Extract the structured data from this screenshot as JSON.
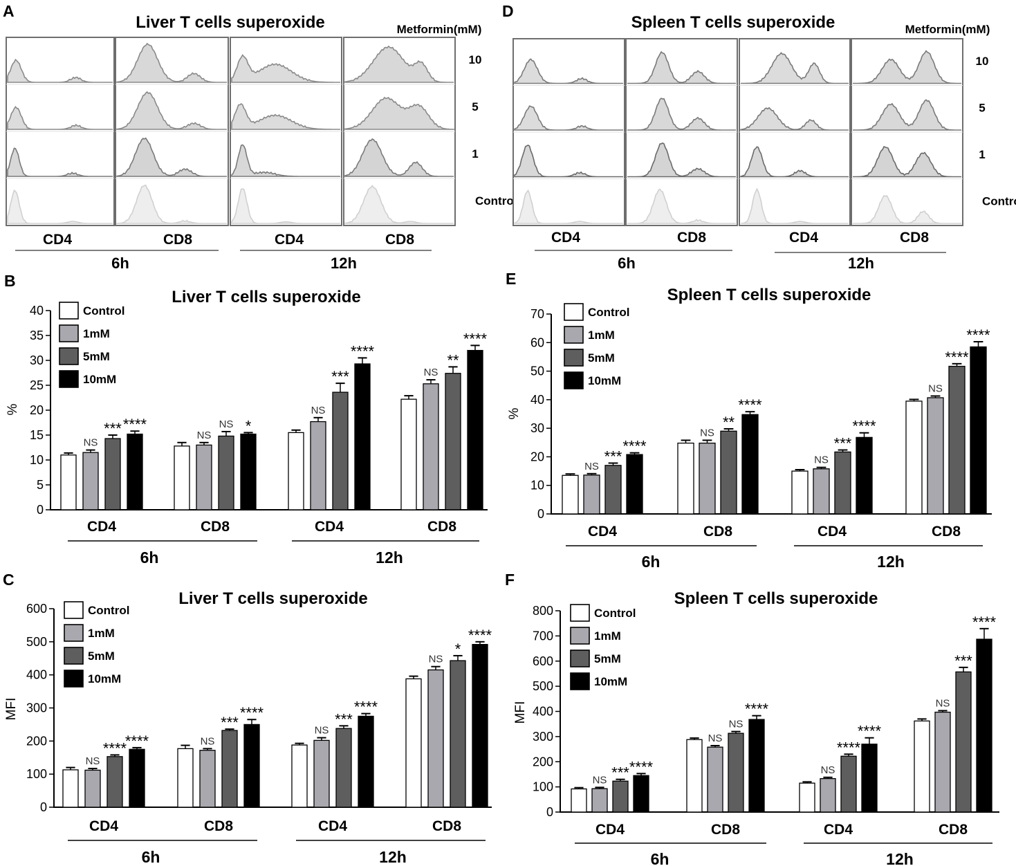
{
  "chart_data": [
    {
      "panel": "A",
      "type": "histogram",
      "title": "Liver T cells superoxide",
      "legend_title": "Metformin(mM)",
      "row_labels": [
        "10",
        "5",
        "1",
        "Control"
      ],
      "subgroups": [
        "CD4",
        "CD8",
        "CD4",
        "CD8"
      ],
      "groups": [
        "6h",
        "12h"
      ],
      "curves": [
        [
          {
            "peaks": [
              [
                0.08,
                0.55,
                0.05
              ],
              [
                0.65,
                0.12,
                0.05
              ]
            ],
            "fill": "#dcdcdc",
            "stroke": "#8a8a8a"
          },
          {
            "peaks": [
              [
                0.28,
                0.95,
                0.09
              ],
              [
                0.7,
                0.22,
                0.06
              ]
            ],
            "fill": "#d8d8d8",
            "stroke": "#8a8a8a"
          },
          {
            "peaks": [
              [
                0.1,
                0.6,
                0.05
              ],
              [
                0.4,
                0.45,
                0.15
              ]
            ],
            "fill": "#dcdcdc",
            "stroke": "#8a8a8a"
          },
          {
            "peaks": [
              [
                0.4,
                0.88,
                0.14
              ],
              [
                0.7,
                0.42,
                0.06
              ]
            ],
            "fill": "#d8d8d8",
            "stroke": "#8a8a8a"
          }
        ],
        [
          {
            "peaks": [
              [
                0.08,
                0.55,
                0.05
              ],
              [
                0.65,
                0.1,
                0.05
              ]
            ],
            "fill": "#dcdcdc",
            "stroke": "#8a8a8a"
          },
          {
            "peaks": [
              [
                0.28,
                0.92,
                0.09
              ],
              [
                0.7,
                0.15,
                0.06
              ]
            ],
            "fill": "#d8d8d8",
            "stroke": "#8a8a8a"
          },
          {
            "peaks": [
              [
                0.08,
                0.6,
                0.05
              ],
              [
                0.4,
                0.35,
                0.15
              ]
            ],
            "fill": "#dcdcdc",
            "stroke": "#8a8a8a"
          },
          {
            "peaks": [
              [
                0.38,
                0.78,
                0.13
              ],
              [
                0.68,
                0.55,
                0.09
              ]
            ],
            "fill": "#d8d8d8",
            "stroke": "#8a8a8a"
          }
        ],
        [
          {
            "peaks": [
              [
                0.07,
                0.7,
                0.04
              ],
              [
                0.62,
                0.08,
                0.05
              ]
            ],
            "fill": "#d8d8d8",
            "stroke": "#7a7a7a"
          },
          {
            "peaks": [
              [
                0.25,
                0.95,
                0.08
              ],
              [
                0.62,
                0.18,
                0.06
              ]
            ],
            "fill": "#d4d4d4",
            "stroke": "#7a7a7a"
          },
          {
            "peaks": [
              [
                0.1,
                0.78,
                0.04
              ],
              [
                0.3,
                0.1,
                0.1
              ]
            ],
            "fill": "#d8d8d8",
            "stroke": "#7a7a7a"
          },
          {
            "peaks": [
              [
                0.25,
                0.92,
                0.09
              ],
              [
                0.65,
                0.35,
                0.06
              ]
            ],
            "fill": "#d4d4d4",
            "stroke": "#7a7a7a"
          }
        ],
        [
          {
            "peaks": [
              [
                0.07,
                0.82,
                0.04
              ],
              [
                0.62,
                0.05,
                0.05
              ]
            ],
            "fill": "#eeeeee",
            "stroke": "#d0d0d0"
          },
          {
            "peaks": [
              [
                0.25,
                0.95,
                0.07
              ],
              [
                0.62,
                0.06,
                0.05
              ]
            ],
            "fill": "#eeeeee",
            "stroke": "#d0d0d0"
          },
          {
            "peaks": [
              [
                0.1,
                0.88,
                0.04
              ],
              [
                0.5,
                0.04,
                0.05
              ]
            ],
            "fill": "#eeeeee",
            "stroke": "#d0d0d0"
          },
          {
            "peaks": [
              [
                0.25,
                0.92,
                0.08
              ],
              [
                0.6,
                0.05,
                0.05
              ]
            ],
            "fill": "#eeeeee",
            "stroke": "#d0d0d0"
          }
        ]
      ]
    },
    {
      "panel": "D",
      "type": "histogram",
      "title": "Spleen T cells superoxide",
      "legend_title": "Metformin(mM)",
      "row_labels": [
        "10",
        "5",
        "1",
        "Control"
      ],
      "subgroups": [
        "CD4",
        "CD8",
        "CD4",
        "CD8"
      ],
      "groups": [
        "6h",
        "12h"
      ],
      "curves": [
        [
          {
            "peaks": [
              [
                0.15,
                0.6,
                0.06
              ],
              [
                0.62,
                0.12,
                0.05
              ]
            ],
            "fill": "#dcdcdc",
            "stroke": "#7a7a7a"
          },
          {
            "peaks": [
              [
                0.32,
                0.78,
                0.06
              ],
              [
                0.65,
                0.3,
                0.06
              ]
            ],
            "fill": "#d8d8d8",
            "stroke": "#7a7a7a"
          },
          {
            "peaks": [
              [
                0.38,
                0.75,
                0.09
              ],
              [
                0.68,
                0.5,
                0.05
              ]
            ],
            "fill": "#dcdcdc",
            "stroke": "#7a7a7a"
          },
          {
            "peaks": [
              [
                0.35,
                0.6,
                0.08
              ],
              [
                0.68,
                0.8,
                0.07
              ]
            ],
            "fill": "#d8d8d8",
            "stroke": "#7a7a7a"
          }
        ],
        [
          {
            "peaks": [
              [
                0.15,
                0.6,
                0.06
              ],
              [
                0.62,
                0.1,
                0.05
              ]
            ],
            "fill": "#dcdcdc",
            "stroke": "#7a7a7a"
          },
          {
            "peaks": [
              [
                0.32,
                0.8,
                0.06
              ],
              [
                0.65,
                0.3,
                0.06
              ]
            ],
            "fill": "#d8d8d8",
            "stroke": "#7a7a7a"
          },
          {
            "peaks": [
              [
                0.25,
                0.55,
                0.09
              ],
              [
                0.65,
                0.25,
                0.05
              ]
            ],
            "fill": "#dcdcdc",
            "stroke": "#7a7a7a"
          },
          {
            "peaks": [
              [
                0.35,
                0.65,
                0.08
              ],
              [
                0.68,
                0.75,
                0.07
              ]
            ],
            "fill": "#d8d8d8",
            "stroke": "#7a7a7a"
          }
        ],
        [
          {
            "peaks": [
              [
                0.12,
                0.8,
                0.05
              ],
              [
                0.6,
                0.1,
                0.05
              ]
            ],
            "fill": "#d8d8d8",
            "stroke": "#6a6a6a"
          },
          {
            "peaks": [
              [
                0.32,
                0.85,
                0.06
              ],
              [
                0.65,
                0.2,
                0.06
              ]
            ],
            "fill": "#d4d4d4",
            "stroke": "#6a6a6a"
          },
          {
            "peaks": [
              [
                0.15,
                0.75,
                0.05
              ],
              [
                0.55,
                0.15,
                0.05
              ]
            ],
            "fill": "#d8d8d8",
            "stroke": "#6a6a6a"
          },
          {
            "peaks": [
              [
                0.3,
                0.75,
                0.07
              ],
              [
                0.65,
                0.6,
                0.07
              ]
            ],
            "fill": "#d4d4d4",
            "stroke": "#6a6a6a"
          }
        ],
        [
          {
            "peaks": [
              [
                0.12,
                0.82,
                0.04
              ],
              [
                0.6,
                0.05,
                0.05
              ]
            ],
            "fill": "#eeeeee",
            "stroke": "#d0d0d0"
          },
          {
            "peaks": [
              [
                0.3,
                0.85,
                0.06
              ],
              [
                0.65,
                0.08,
                0.05
              ]
            ],
            "fill": "#eeeeee",
            "stroke": "#d0d0d0"
          },
          {
            "peaks": [
              [
                0.15,
                0.85,
                0.04
              ],
              [
                0.55,
                0.05,
                0.05
              ]
            ],
            "fill": "#eeeeee",
            "stroke": "#d0d0d0"
          },
          {
            "peaks": [
              [
                0.3,
                0.7,
                0.06
              ],
              [
                0.65,
                0.3,
                0.05
              ]
            ],
            "fill": "#eeeeee",
            "stroke": "#d0d0d0"
          }
        ]
      ]
    },
    {
      "panel": "B",
      "type": "bar",
      "title": "Liver T cells superoxide",
      "ylabel": "%",
      "ylim": [
        0,
        40
      ],
      "yticks": [
        0,
        5,
        10,
        15,
        20,
        25,
        30,
        35,
        40
      ],
      "legend_position": "top-left",
      "categories": [
        "CD4",
        "CD8",
        "CD4",
        "CD8"
      ],
      "groups": [
        "6h",
        "12h"
      ],
      "series": [
        {
          "name": "Control",
          "color": "#ffffff",
          "values": [
            11.0,
            12.8,
            15.5,
            22.2
          ],
          "errors": [
            0.4,
            0.7,
            0.5,
            0.7
          ]
        },
        {
          "name": "1mM",
          "color": "#a8a8ae",
          "values": [
            11.5,
            13.0,
            17.7,
            25.3
          ],
          "errors": [
            0.5,
            0.5,
            0.8,
            0.8
          ]
        },
        {
          "name": "5mM",
          "color": "#5e5e5e",
          "values": [
            14.3,
            14.8,
            23.6,
            27.4
          ],
          "errors": [
            0.7,
            0.9,
            1.8,
            1.3
          ]
        },
        {
          "name": "10mM",
          "color": "#000000",
          "values": [
            15.2,
            15.2,
            29.3,
            32.0
          ],
          "errors": [
            0.6,
            0.3,
            1.2,
            1.0
          ]
        }
      ],
      "significance": [
        [
          "",
          "NS",
          "***",
          "****"
        ],
        [
          "",
          "NS",
          "NS",
          "*"
        ],
        [
          "",
          "NS",
          "***",
          "****"
        ],
        [
          "",
          "NS",
          "**",
          "****"
        ]
      ]
    },
    {
      "panel": "E",
      "type": "bar",
      "title": "Spleen T cells superoxide",
      "ylabel": "%",
      "ylim": [
        0,
        70
      ],
      "yticks": [
        0,
        10,
        20,
        30,
        40,
        50,
        60,
        70
      ],
      "legend_position": "top-left",
      "categories": [
        "CD4",
        "CD8",
        "CD4",
        "CD8"
      ],
      "groups": [
        "6h",
        "12h"
      ],
      "series": [
        {
          "name": "Control",
          "color": "#ffffff",
          "values": [
            13.5,
            24.8,
            15.0,
            39.5
          ],
          "errors": [
            0.5,
            1.0,
            0.5,
            0.6
          ]
        },
        {
          "name": "1mM",
          "color": "#a8a8ae",
          "values": [
            13.6,
            24.8,
            15.8,
            40.7
          ],
          "errors": [
            0.5,
            1.0,
            0.5,
            0.6
          ]
        },
        {
          "name": "5mM",
          "color": "#5e5e5e",
          "values": [
            17.0,
            29.0,
            21.7,
            51.7
          ],
          "errors": [
            0.8,
            0.8,
            0.7,
            0.9
          ]
        },
        {
          "name": "10mM",
          "color": "#000000",
          "values": [
            20.8,
            34.8,
            26.8,
            58.5
          ],
          "errors": [
            0.6,
            1.0,
            1.6,
            1.8
          ]
        }
      ],
      "significance": [
        [
          "",
          "NS",
          "***",
          "****"
        ],
        [
          "",
          "NS",
          "**",
          "****"
        ],
        [
          "",
          "NS",
          "***",
          "****"
        ],
        [
          "",
          "NS",
          "****",
          "****"
        ]
      ]
    },
    {
      "panel": "C",
      "type": "bar",
      "title": "Liver T cells superoxide",
      "ylabel": "MFI",
      "ylim": [
        0,
        600
      ],
      "yticks": [
        0,
        100,
        200,
        300,
        400,
        500,
        600
      ],
      "legend_position": "top-left",
      "categories": [
        "CD4",
        "CD8",
        "CD4",
        "CD8"
      ],
      "groups": [
        "6h",
        "12h"
      ],
      "series": [
        {
          "name": "Control",
          "color": "#ffffff",
          "values": [
            113,
            177,
            188,
            388
          ],
          "errors": [
            7,
            10,
            5,
            8
          ]
        },
        {
          "name": "1mM",
          "color": "#a8a8ae",
          "values": [
            112,
            172,
            202,
            415
          ],
          "errors": [
            5,
            5,
            8,
            10
          ]
        },
        {
          "name": "5mM",
          "color": "#5e5e5e",
          "values": [
            153,
            232,
            238,
            443
          ],
          "errors": [
            5,
            4,
            8,
            15
          ]
        },
        {
          "name": "10mM",
          "color": "#000000",
          "values": [
            175,
            250,
            275,
            492
          ],
          "errors": [
            5,
            15,
            8,
            8
          ]
        }
      ],
      "significance": [
        [
          "",
          "NS",
          "****",
          "****"
        ],
        [
          "",
          "NS",
          "***",
          "****"
        ],
        [
          "",
          "NS",
          "***",
          "****"
        ],
        [
          "",
          "NS",
          "*",
          "****"
        ]
      ]
    },
    {
      "panel": "F",
      "type": "bar",
      "title": "Spleen T cells superoxide",
      "ylabel": "MFI",
      "ylim": [
        0,
        800
      ],
      "yticks": [
        0,
        100,
        200,
        300,
        400,
        500,
        600,
        700,
        800
      ],
      "legend_position": "top-left",
      "categories": [
        "CD4",
        "CD8",
        "CD4",
        "CD8"
      ],
      "groups": [
        "6h",
        "12h"
      ],
      "series": [
        {
          "name": "Control",
          "color": "#ffffff",
          "values": [
            92,
            288,
            115,
            362
          ],
          "errors": [
            5,
            6,
            5,
            8
          ]
        },
        {
          "name": "1mM",
          "color": "#a8a8ae",
          "values": [
            93,
            258,
            133,
            397
          ],
          "errors": [
            5,
            6,
            5,
            6
          ]
        },
        {
          "name": "5mM",
          "color": "#5e5e5e",
          "values": [
            123,
            313,
            222,
            557
          ],
          "errors": [
            7,
            7,
            8,
            18
          ]
        },
        {
          "name": "10mM",
          "color": "#000000",
          "values": [
            145,
            368,
            270,
            687
          ],
          "errors": [
            8,
            15,
            25,
            42
          ]
        }
      ],
      "significance": [
        [
          "",
          "NS",
          "***",
          "****"
        ],
        [
          "",
          "NS",
          "NS",
          "****"
        ],
        [
          "",
          "NS",
          "****",
          "****"
        ],
        [
          "",
          "NS",
          "***",
          "****"
        ]
      ]
    }
  ]
}
